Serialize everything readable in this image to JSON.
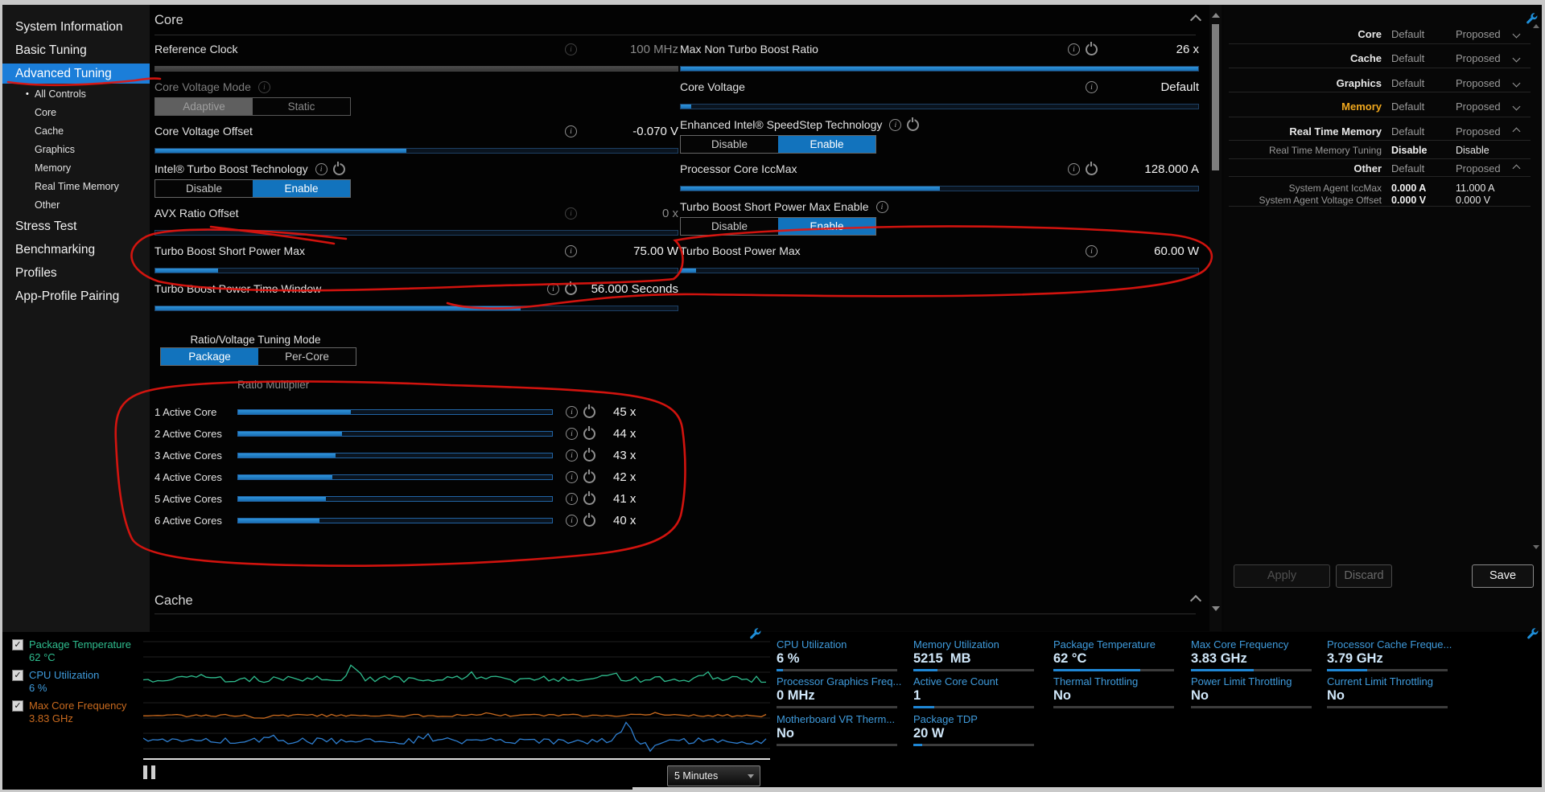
{
  "colors": {
    "accent": "#1273bd",
    "sidebar_highlight": "#1b7ed9",
    "annotation_red": "#e3150f",
    "memory_orange": "#f0a81e"
  },
  "sidebar": {
    "items": [
      {
        "label": "System Information"
      },
      {
        "label": "Basic Tuning"
      },
      {
        "label": "Advanced Tuning",
        "active": true
      },
      {
        "label": "All Controls",
        "sub": true,
        "bullet": true
      },
      {
        "label": "Core",
        "sub": true
      },
      {
        "label": "Cache",
        "sub": true
      },
      {
        "label": "Graphics",
        "sub": true
      },
      {
        "label": "Memory",
        "sub": true
      },
      {
        "label": "Real Time Memory",
        "sub": true
      },
      {
        "label": "Other",
        "sub": true
      },
      {
        "label": "Stress Test"
      },
      {
        "label": "Benchmarking"
      },
      {
        "label": "Profiles"
      },
      {
        "label": "App-Profile Pairing"
      }
    ]
  },
  "core": {
    "title": "Core",
    "cache_title": "Cache"
  },
  "controls_left": [
    {
      "type": "value",
      "label": "Reference Clock",
      "icons": [
        "info"
      ],
      "value": "100 MHz",
      "dim_icons": true,
      "dim_value": true
    },
    {
      "type": "slider",
      "fill": 1,
      "variant": "gray"
    },
    {
      "type": "heading",
      "label": "Core Voltage Mode",
      "icons": [
        "info"
      ],
      "dim": true,
      "dim_icons": true
    },
    {
      "type": "toggle",
      "options": [
        "Adaptive",
        "Static"
      ],
      "selected": 0,
      "variant": "gray"
    },
    {
      "type": "value",
      "label": "Core Voltage Offset",
      "icons": [
        "info"
      ],
      "value": "-0.070 V"
    },
    {
      "type": "slider",
      "fill": 0.48
    },
    {
      "type": "heading",
      "label": "Intel® Turbo Boost Technology",
      "icons": [
        "info",
        "power"
      ]
    },
    {
      "type": "toggle",
      "options": [
        "Disable",
        "Enable"
      ],
      "selected": 1
    },
    {
      "type": "value",
      "label": "AVX Ratio Offset",
      "icons": [
        "info"
      ],
      "value": "0 x",
      "dim_icons": true,
      "dim_value": true
    },
    {
      "type": "slider",
      "fill": 0
    },
    {
      "type": "value",
      "label": "Turbo Boost Short Power Max",
      "icons": [
        "info"
      ],
      "value": "75.00 W"
    },
    {
      "type": "slider",
      "fill": 0.12
    },
    {
      "type": "value",
      "label": "Turbo Boost Power Time Window",
      "icons": [
        "info",
        "power"
      ],
      "value": "56.000 Seconds"
    },
    {
      "type": "slider",
      "fill": 0.7
    },
    {
      "type": "center_label",
      "label": "Ratio/Voltage Tuning Mode"
    },
    {
      "type": "toggle",
      "options": [
        "Package",
        "Per-Core"
      ],
      "selected": 0,
      "narrow": true
    },
    {
      "type": "sub_label",
      "label": "Ratio Multiplier"
    }
  ],
  "controls_right": [
    {
      "type": "value",
      "label": "Max Non Turbo Boost Ratio",
      "icons": [
        "info",
        "power"
      ],
      "value": "26 x"
    },
    {
      "type": "slider",
      "fill": 1
    },
    {
      "type": "value",
      "label": "Core Voltage",
      "icons": [
        "info"
      ],
      "value": "Default"
    },
    {
      "type": "slider",
      "fill": 0.02
    },
    {
      "type": "heading",
      "label": "Enhanced Intel® SpeedStep Technology",
      "icons": [
        "info",
        "power"
      ]
    },
    {
      "type": "toggle",
      "options": [
        "Disable",
        "Enable"
      ],
      "selected": 1
    },
    {
      "type": "value",
      "label": "Processor Core IccMax",
      "icons": [
        "info",
        "power"
      ],
      "value": "128.000 A"
    },
    {
      "type": "slider",
      "fill": 0.5
    },
    {
      "type": "heading",
      "label": "Turbo Boost Short Power Max Enable",
      "icons": [
        "info"
      ]
    },
    {
      "type": "toggle",
      "options": [
        "Disable",
        "Enable"
      ],
      "selected": 1
    },
    {
      "type": "value",
      "label": "Turbo Boost Power Max",
      "icons": [
        "info"
      ],
      "value": "60.00 W"
    },
    {
      "type": "slider",
      "fill": 0.03
    }
  ],
  "ratio": {
    "rows": [
      {
        "label": "1 Active Core",
        "value": "45 x",
        "fill": 0.36
      },
      {
        "label": "2 Active Cores",
        "value": "44 x",
        "fill": 0.33
      },
      {
        "label": "3 Active Cores",
        "value": "43 x",
        "fill": 0.31
      },
      {
        "label": "4 Active Cores",
        "value": "42 x",
        "fill": 0.3
      },
      {
        "label": "5 Active Cores",
        "value": "41 x",
        "fill": 0.28
      },
      {
        "label": "6 Active Cores",
        "value": "40 x",
        "fill": 0.26
      }
    ]
  },
  "right_panel": {
    "rows": [
      {
        "label": "Core",
        "c1": "Default",
        "c2": "Proposed",
        "chev": "down",
        "kind": "group"
      },
      {
        "label": "Cache",
        "c1": "Default",
        "c2": "Proposed",
        "chev": "down",
        "kind": "group"
      },
      {
        "label": "Graphics",
        "c1": "Default",
        "c2": "Proposed",
        "chev": "down",
        "kind": "group"
      },
      {
        "label": "Memory",
        "c1": "Default",
        "c2": "Proposed",
        "chev": "down",
        "kind": "group",
        "color": "#f0a81e"
      },
      {
        "label": "Real Time Memory",
        "c1": "Default",
        "c2": "Proposed",
        "chev": "up",
        "kind": "group"
      },
      {
        "label": "Real Time Memory Tuning",
        "c1": "Disable",
        "c2": "Disable",
        "kind": "sub"
      },
      {
        "label": "Other",
        "c1": "Default",
        "c2": "Proposed",
        "chev": "up",
        "kind": "group"
      },
      {
        "label": "System Agent IccMax",
        "c1": "0.000 A",
        "c2": "11.000 A",
        "kind": "sub"
      },
      {
        "label": "System Agent Voltage Offset",
        "c1": "0.000 V",
        "c2": "0.000 V",
        "kind": "sub"
      }
    ],
    "buttons": {
      "apply": "Apply",
      "discard": "Discard",
      "save": "Save"
    }
  },
  "monitor": {
    "legend": [
      {
        "label": "Package Temperature",
        "value": "62 °C",
        "color": "#2fbe8f",
        "checked": true
      },
      {
        "label": "CPU Utilization",
        "value": "6 %",
        "color": "#3f9bdc",
        "checked": true
      },
      {
        "label": "Max Core Frequency",
        "value": "3.83 GHz",
        "color": "#c96a1e",
        "checked": true
      }
    ],
    "interval": "5 Minutes",
    "stats_columns": [
      [
        {
          "label": "CPU Utilization",
          "value": "6 %",
          "bar": 0.05
        },
        {
          "label": "Processor Graphics Freq...",
          "value": "0 MHz",
          "bar": 0
        },
        {
          "label": "Motherboard VR Therm...",
          "value": "No",
          "bar": 0
        }
      ],
      [
        {
          "label": "Memory Utilization",
          "value": "5215  MB",
          "bar": 0.2
        },
        {
          "label": "Active Core Count",
          "value": "1",
          "bar": 0.17
        },
        {
          "label": "Package TDP",
          "value": "20 W",
          "bar": 0.07
        }
      ],
      [
        {
          "label": "Package Temperature",
          "value": "62 °C",
          "bar": 0.72
        },
        {
          "label": "Thermal Throttling",
          "value": "No",
          "bar": 0
        }
      ],
      [
        {
          "label": "Max Core Frequency",
          "value": "3.83 GHz",
          "bar": 0.52
        },
        {
          "label": "Power Limit Throttling",
          "value": "No",
          "bar": 0
        }
      ],
      [
        {
          "label": "Processor Cache Freque...",
          "value": "3.79 GHz",
          "bar": 0.33
        },
        {
          "label": "Current Limit Throttling",
          "value": "No",
          "bar": 0
        }
      ]
    ],
    "graph": {
      "series": [
        {
          "name": "Package Temperature",
          "color": "#2fbe8f",
          "base": 0.36,
          "amp": 4,
          "spikes": [
            [
              0.09,
              -8
            ],
            [
              0.335,
              -17
            ],
            [
              0.52,
              -8
            ],
            [
              0.75,
              -7
            ],
            [
              0.9,
              -6
            ]
          ]
        },
        {
          "name": "Max Core Frequency",
          "color": "#c96a1e",
          "base": 0.645,
          "amp": 1.6,
          "spikes": [
            [
              0.19,
              5
            ],
            [
              0.55,
              -4
            ],
            [
              0.82,
              -3
            ]
          ]
        },
        {
          "name": "CPU Utilization",
          "color": "#2f7fd0",
          "base": 0.845,
          "amp": 4,
          "spikes": [
            [
              0.2,
              -8
            ],
            [
              0.45,
              -7
            ],
            [
              0.77,
              -20
            ],
            [
              0.81,
              9
            ]
          ]
        }
      ]
    }
  }
}
